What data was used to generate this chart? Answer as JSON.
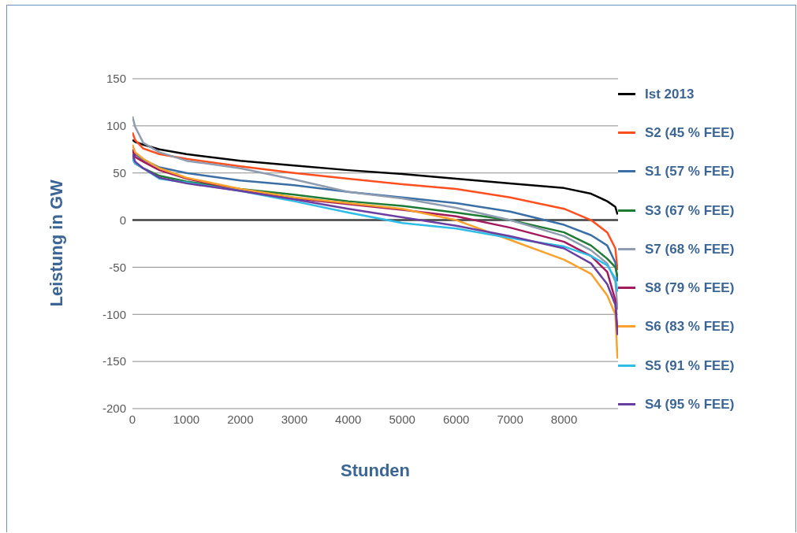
{
  "chart_data": {
    "type": "line",
    "xlabel": "Stunden",
    "ylabel": "Leistung in GW",
    "x": [
      0,
      50,
      200,
      500,
      1000,
      2000,
      3000,
      4000,
      5000,
      6000,
      7000,
      8000,
      8500,
      8800,
      8950,
      8990
    ],
    "series": [
      {
        "name": "Ist 2013",
        "color": "#000000",
        "values": [
          85,
          83,
          80,
          75,
          70,
          63,
          58,
          53,
          49,
          44,
          39,
          34,
          28,
          20,
          14,
          6
        ]
      },
      {
        "name": "S2 (45 % FEE)",
        "color": "#ff4f1f",
        "values": [
          93,
          85,
          76,
          70,
          65,
          57,
          50,
          44,
          38,
          33,
          24,
          12,
          0,
          -13,
          -30,
          -53
        ]
      },
      {
        "name": "S1 (57 % FEE)",
        "color": "#3a6ea5",
        "values": [
          72,
          70,
          64,
          56,
          50,
          42,
          37,
          30,
          24,
          18,
          9,
          -5,
          -16,
          -27,
          -45,
          -65
        ]
      },
      {
        "name": "S3 (67 % FEE)",
        "color": "#1e7b34",
        "values": [
          66,
          60,
          55,
          47,
          41,
          33,
          27,
          20,
          15,
          8,
          0,
          -13,
          -27,
          -41,
          -50,
          -60
        ]
      },
      {
        "name": "S7 (68 % FEE)",
        "color": "#8e9bb0",
        "values": [
          110,
          99,
          82,
          72,
          63,
          55,
          43,
          30,
          23,
          13,
          0,
          -17,
          -32,
          -46,
          -65,
          -95
        ]
      },
      {
        "name": "S8 (79 % FEE)",
        "color": "#a3195b",
        "values": [
          75,
          67,
          62,
          53,
          44,
          32,
          23,
          17,
          11,
          4,
          -8,
          -23,
          -38,
          -55,
          -85,
          -120
        ]
      },
      {
        "name": "S6 (83 % FEE)",
        "color": "#f9a12b",
        "values": [
          80,
          72,
          65,
          55,
          45,
          33,
          24,
          18,
          12,
          0,
          -21,
          -42,
          -57,
          -80,
          -100,
          -147
        ]
      },
      {
        "name": "S5 (91 % FEE)",
        "color": "#2ebde6",
        "values": [
          65,
          60,
          55,
          44,
          40,
          31,
          20,
          8,
          -3,
          -9,
          -19,
          -28,
          -38,
          -48,
          -62,
          -76
        ]
      },
      {
        "name": "S4 (95 % FEE)",
        "color": "#6a3ea0",
        "values": [
          70,
          62,
          55,
          45,
          39,
          31,
          22,
          12,
          3,
          -6,
          -17,
          -30,
          -46,
          -68,
          -90,
          -122
        ]
      }
    ],
    "xlim": [
      0,
      9000
    ],
    "xticks": [
      0,
      1000,
      2000,
      3000,
      4000,
      5000,
      6000,
      7000,
      8000
    ],
    "ylim": [
      -200,
      150
    ],
    "yticks": [
      -200,
      -150,
      -100,
      -50,
      0,
      50,
      100,
      150
    ],
    "ref_lines": [
      {
        "axis": "y",
        "value": 0,
        "color": "#404040"
      }
    ],
    "grid": "y",
    "legend": "right",
    "marker": "none",
    "line_style": "solid"
  }
}
